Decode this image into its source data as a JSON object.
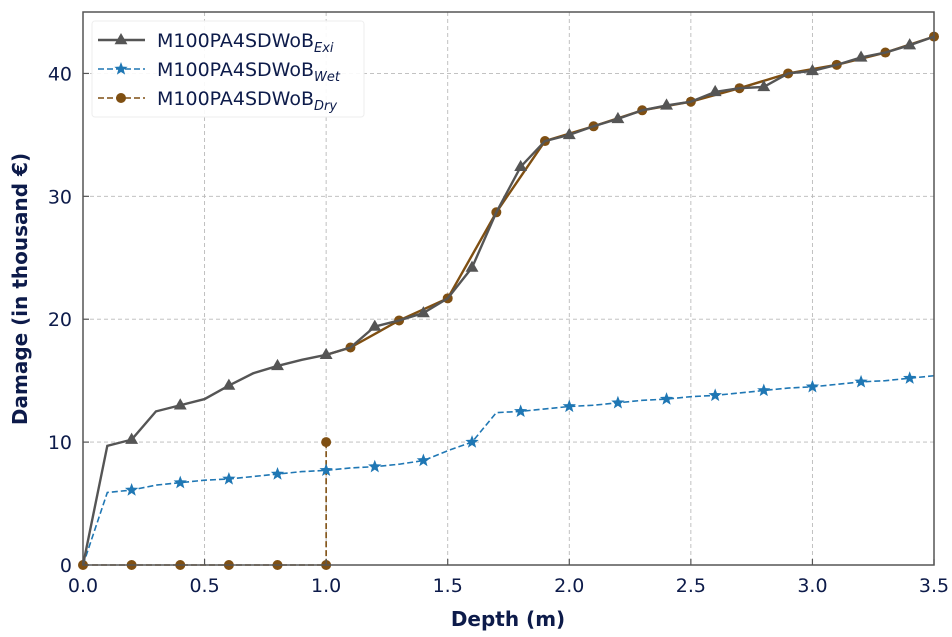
{
  "chart_data": {
    "type": "line",
    "title": "",
    "xlabel": "Depth (m)",
    "ylabel": "Damage (in thousand €)",
    "xlim": [
      0.0,
      3.5
    ],
    "ylim": [
      0,
      45
    ],
    "xticks": [
      "0.0",
      "0.5",
      "1.0",
      "1.5",
      "2.0",
      "2.5",
      "3.0",
      "3.5"
    ],
    "yticks": [
      "0",
      "10",
      "20",
      "30",
      "40"
    ],
    "grid": true,
    "legend_position": "top-left",
    "series": [
      {
        "name": "M100PA4SDWoB",
        "subscript": "Exi",
        "color": "#555555",
        "marker": "triangle",
        "line_style": "solid",
        "x": [
          0.0,
          0.1,
          0.2,
          0.3,
          0.4,
          0.5,
          0.6,
          0.7,
          0.8,
          0.9,
          1.0,
          1.1,
          1.2,
          1.3,
          1.4,
          1.5,
          1.6,
          1.7,
          1.8,
          1.9,
          2.0,
          2.1,
          2.2,
          2.3,
          2.4,
          2.5,
          2.6,
          2.7,
          2.8,
          2.9,
          3.0,
          3.1,
          3.2,
          3.3,
          3.4,
          3.5
        ],
        "y": [
          0.0,
          9.7,
          10.2,
          12.5,
          13.0,
          13.5,
          14.6,
          15.6,
          16.2,
          16.7,
          17.1,
          17.7,
          19.4,
          19.9,
          20.5,
          21.7,
          24.2,
          28.7,
          32.4,
          34.5,
          35.0,
          35.7,
          36.3,
          37.0,
          37.4,
          37.7,
          38.5,
          38.8,
          38.9,
          40.0,
          40.2,
          40.7,
          41.3,
          41.7,
          42.3,
          43.0
        ],
        "marker_x": [
          0.2,
          0.4,
          0.6,
          0.8,
          1.0,
          1.2,
          1.4,
          1.6,
          1.8,
          2.0,
          2.2,
          2.4,
          2.6,
          2.8,
          3.0,
          3.2,
          3.4
        ]
      },
      {
        "name": "M100PA4SDWoB",
        "subscript": "Wet",
        "color": "#1f77b4",
        "marker": "star",
        "line_style": "dashed",
        "x": [
          0.0,
          0.1,
          0.2,
          0.3,
          0.4,
          0.5,
          0.6,
          0.7,
          0.8,
          0.9,
          1.0,
          1.1,
          1.2,
          1.3,
          1.4,
          1.5,
          1.6,
          1.7,
          1.8,
          1.9,
          2.0,
          2.1,
          2.2,
          2.3,
          2.4,
          2.5,
          2.6,
          2.7,
          2.8,
          2.9,
          3.0,
          3.1,
          3.2,
          3.3,
          3.4,
          3.5
        ],
        "y": [
          0.0,
          5.9,
          6.1,
          6.5,
          6.7,
          6.9,
          7.0,
          7.2,
          7.4,
          7.6,
          7.7,
          7.9,
          8.0,
          8.2,
          8.5,
          9.3,
          10.0,
          12.4,
          12.5,
          12.7,
          12.9,
          13.0,
          13.2,
          13.4,
          13.5,
          13.7,
          13.8,
          14.0,
          14.2,
          14.4,
          14.5,
          14.7,
          14.9,
          15.0,
          15.2,
          15.4
        ],
        "marker_x": [
          0.2,
          0.4,
          0.6,
          0.8,
          1.0,
          1.2,
          1.4,
          1.6,
          1.8,
          2.0,
          2.2,
          2.4,
          2.6,
          2.8,
          3.0,
          3.2,
          3.4
        ]
      },
      {
        "name": "M100PA4SDWoB",
        "subscript": "Dry",
        "color": "#7f4f12",
        "marker": "circle",
        "line_style": "dashed",
        "x": [
          0.0,
          0.2,
          0.4,
          0.6,
          0.8,
          1.0,
          1.0,
          1.0,
          1.1,
          1.3,
          1.5,
          1.7,
          1.9,
          2.1,
          2.3,
          2.5,
          2.7,
          2.9,
          3.1,
          3.3,
          3.5
        ],
        "y": [
          0.0,
          0.0,
          0.0,
          0.0,
          0.0,
          0.0,
          10.0,
          17.1,
          17.7,
          19.9,
          21.7,
          28.7,
          34.5,
          35.7,
          37.0,
          37.7,
          38.8,
          40.0,
          40.7,
          41.7,
          43.0
        ],
        "marker_idx": [
          0,
          1,
          2,
          3,
          4,
          5,
          6,
          8,
          9,
          10,
          11,
          12,
          13,
          14,
          15,
          16,
          17,
          18,
          19,
          20
        ],
        "dashed_segments_end": 7
      }
    ]
  }
}
